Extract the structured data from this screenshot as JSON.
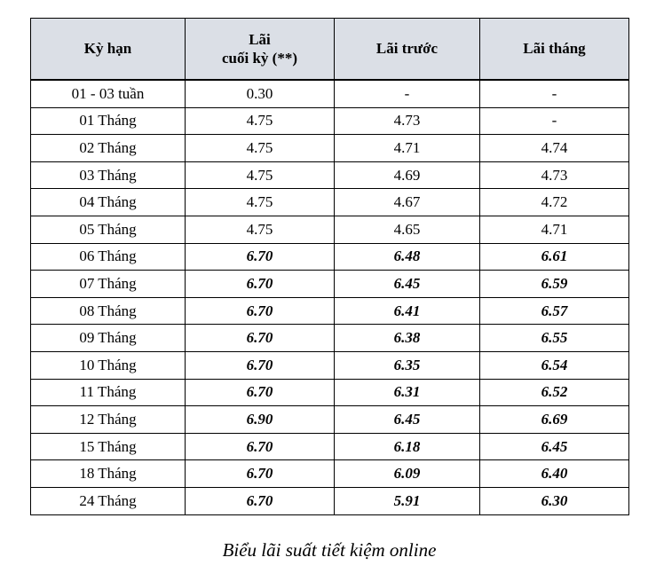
{
  "chart_data": {
    "type": "table",
    "title": "Biểu lãi suất tiết kiệm online",
    "columns": [
      "Kỳ hạn",
      "Lãi cuối kỳ (**)",
      "Lãi trước",
      "Lãi tháng"
    ],
    "header_display": [
      "Kỳ hạn",
      "Lãi\ncuối kỳ (**)",
      "Lãi trước",
      "Lãi tháng"
    ],
    "rows": [
      {
        "term": "01 - 03 tuần",
        "lai_cuoi_ky": "0.30",
        "lai_truoc": "-",
        "lai_thang": "-",
        "emphasized": false
      },
      {
        "term": "01 Tháng",
        "lai_cuoi_ky": "4.75",
        "lai_truoc": "4.73",
        "lai_thang": "-",
        "emphasized": false
      },
      {
        "term": "02 Tháng",
        "lai_cuoi_ky": "4.75",
        "lai_truoc": "4.71",
        "lai_thang": "4.74",
        "emphasized": false
      },
      {
        "term": "03 Tháng",
        "lai_cuoi_ky": "4.75",
        "lai_truoc": "4.69",
        "lai_thang": "4.73",
        "emphasized": false
      },
      {
        "term": "04 Tháng",
        "lai_cuoi_ky": "4.75",
        "lai_truoc": "4.67",
        "lai_thang": "4.72",
        "emphasized": false
      },
      {
        "term": "05 Tháng",
        "lai_cuoi_ky": "4.75",
        "lai_truoc": "4.65",
        "lai_thang": "4.71",
        "emphasized": false
      },
      {
        "term": "06 Tháng",
        "lai_cuoi_ky": "6.70",
        "lai_truoc": "6.48",
        "lai_thang": "6.61",
        "emphasized": true
      },
      {
        "term": "07 Tháng",
        "lai_cuoi_ky": "6.70",
        "lai_truoc": "6.45",
        "lai_thang": "6.59",
        "emphasized": true
      },
      {
        "term": "08 Tháng",
        "lai_cuoi_ky": "6.70",
        "lai_truoc": "6.41",
        "lai_thang": "6.57",
        "emphasized": true
      },
      {
        "term": "09 Tháng",
        "lai_cuoi_ky": "6.70",
        "lai_truoc": "6.38",
        "lai_thang": "6.55",
        "emphasized": true
      },
      {
        "term": "10 Tháng",
        "lai_cuoi_ky": "6.70",
        "lai_truoc": "6.35",
        "lai_thang": "6.54",
        "emphasized": true
      },
      {
        "term": "11 Tháng",
        "lai_cuoi_ky": "6.70",
        "lai_truoc": "6.31",
        "lai_thang": "6.52",
        "emphasized": true
      },
      {
        "term": "12 Tháng",
        "lai_cuoi_ky": "6.90",
        "lai_truoc": "6.45",
        "lai_thang": "6.69",
        "emphasized": true
      },
      {
        "term": "15 Tháng",
        "lai_cuoi_ky": "6.70",
        "lai_truoc": "6.18",
        "lai_thang": "6.45",
        "emphasized": true
      },
      {
        "term": "18 Tháng",
        "lai_cuoi_ky": "6.70",
        "lai_truoc": "6.09",
        "lai_thang": "6.40",
        "emphasized": true
      },
      {
        "term": "24 Tháng",
        "lai_cuoi_ky": "6.70",
        "lai_truoc": "5.91",
        "lai_thang": "6.30",
        "emphasized": true
      }
    ],
    "legend_position": "none",
    "grid": true
  },
  "caption": {
    "text": "Biểu lãi suất tiết kiệm online"
  },
  "styles": {
    "header_bg": "#dbdfe6",
    "border_color": "#000000",
    "text_color": "#000000",
    "page_bg": "#ffffff"
  }
}
